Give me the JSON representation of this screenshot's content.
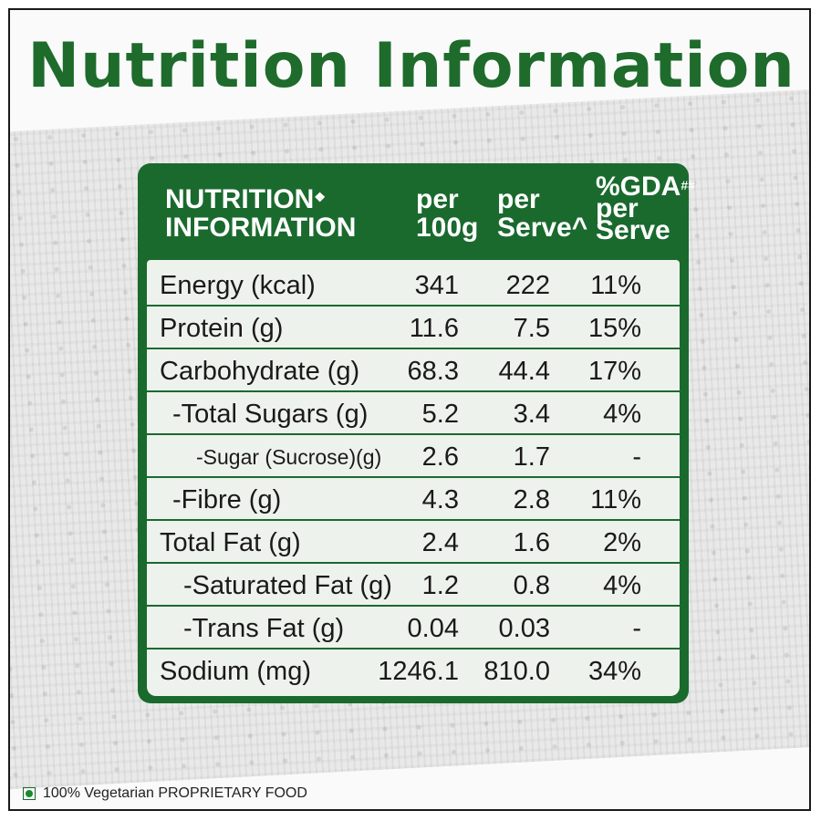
{
  "title": "Nutrition Information",
  "header": {
    "col1_line1": "NUTRITION",
    "col1_mark": "❖",
    "col1_line2": "INFORMATION",
    "col2_line1": "per",
    "col2_line2": "100g",
    "col3_line1": "per",
    "col3_line2": "Serve^",
    "col4_line1": "%GDA",
    "col4_mark": "##",
    "col4_line2": "per",
    "col4_line3": "Serve"
  },
  "rows": [
    {
      "label": "Energy (kcal)",
      "per100g": "341",
      "perServe": "222",
      "gda": "11%"
    },
    {
      "label": "Protein (g)",
      "per100g": "11.6",
      "perServe": "7.5",
      "gda": "15%"
    },
    {
      "label": "Carbohydrate (g)",
      "per100g": "68.3",
      "perServe": "44.4",
      "gda": "17%"
    },
    {
      "label": "-Total Sugars (g)",
      "per100g": "5.2",
      "perServe": "3.4",
      "gda": "4%"
    },
    {
      "label": "-Sugar (Sucrose)(g)",
      "per100g": "2.6",
      "perServe": "1.7",
      "gda": "-"
    },
    {
      "label": "-Fibre (g)",
      "per100g": "4.3",
      "perServe": "2.8",
      "gda": "11%"
    },
    {
      "label": "Total Fat (g)",
      "per100g": "2.4",
      "perServe": "1.6",
      "gda": "2%"
    },
    {
      "label": "-Saturated Fat (g)",
      "per100g": "1.2",
      "perServe": "0.8",
      "gda": "4%"
    },
    {
      "label": "-Trans Fat (g)",
      "per100g": "0.04",
      "perServe": "0.03",
      "gda": "-"
    },
    {
      "label": "Sodium (mg)",
      "per100g": "1246.1",
      "perServe": "810.0",
      "gda": "34%"
    }
  ],
  "footer": {
    "text": "100% Vegetarian PROPRIETARY FOOD",
    "veg_mark_color": "#1a8a2e"
  },
  "colors": {
    "brand_green": "#1a6a2e",
    "title_green": "#1e6b2c",
    "table_bg": "#eef2ec"
  }
}
